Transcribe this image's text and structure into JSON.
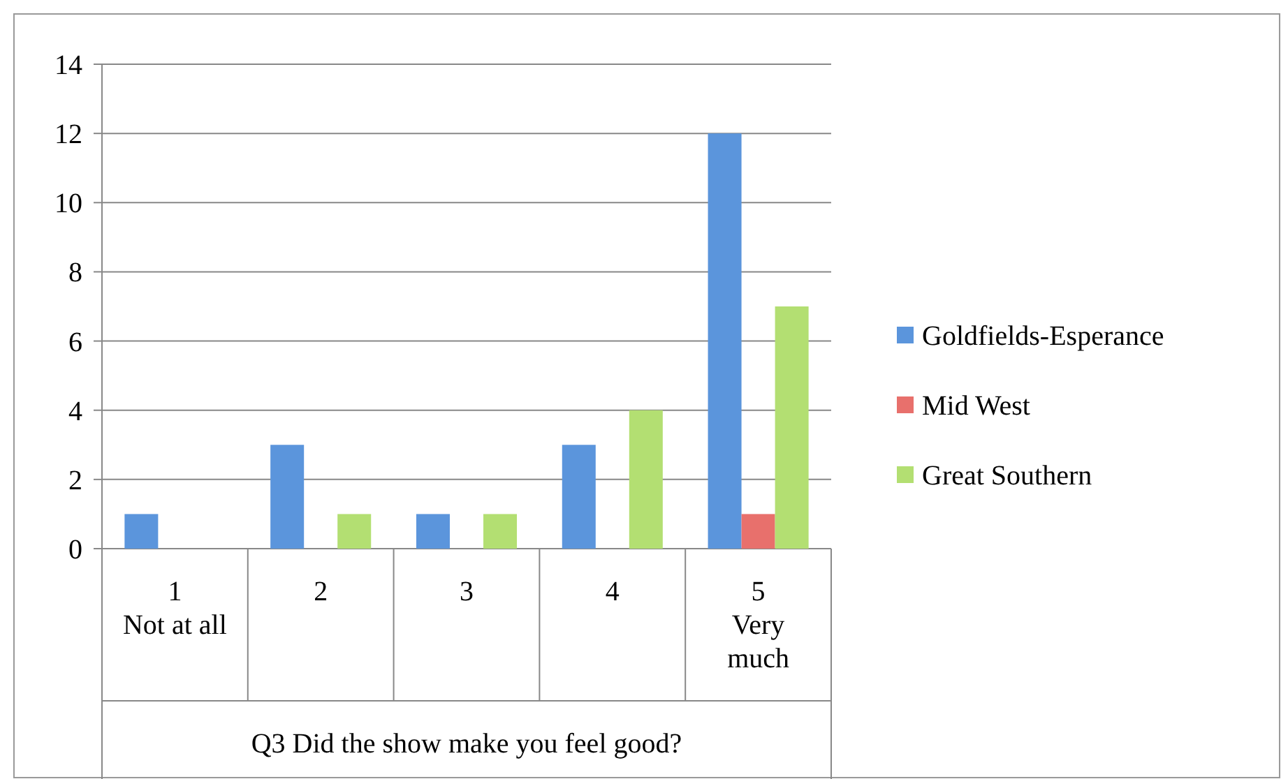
{
  "chart_data": {
    "type": "bar",
    "xlabel": "Q3 Did the show make you feel good?",
    "categories": [
      "1\nNot at all",
      "2",
      "3",
      "4",
      "5\nVery\nmuch"
    ],
    "series": [
      {
        "name": "Goldfields-Esperance",
        "color": "#5b95dc",
        "values": [
          1,
          3,
          1,
          3,
          12
        ]
      },
      {
        "name": "Mid West",
        "color": "#e8706c",
        "values": [
          0,
          0,
          0,
          0,
          1
        ]
      },
      {
        "name": "Great Southern",
        "color": "#b3df72",
        "values": [
          0,
          1,
          1,
          4,
          7
        ]
      }
    ],
    "ylim": [
      0,
      14
    ],
    "yticks": [
      0,
      2,
      4,
      6,
      8,
      10,
      12,
      14
    ],
    "grid": "y",
    "legend": "right"
  }
}
